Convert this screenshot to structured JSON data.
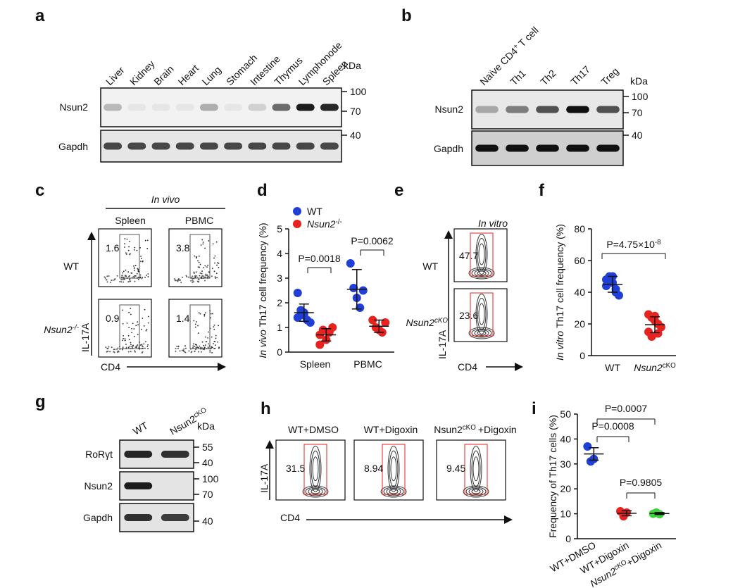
{
  "panels": {
    "a": {
      "label": "a",
      "lanes": [
        "Liver",
        "Kidney",
        "Brain",
        "Heart",
        "Lung",
        "Stomach",
        "Intestine",
        "Thymus",
        "Lymphonode",
        "Spleen"
      ],
      "rows": [
        "Nsun2",
        "Gapdh"
      ],
      "kda": "kDa",
      "markers": [
        100,
        70,
        40
      ]
    },
    "b": {
      "label": "b",
      "lanes": [
        {
          "text": "Naïve CD4",
          "sup": "+",
          "after": "T cell"
        },
        "Th1",
        "Th2",
        "Th17",
        "Treg"
      ],
      "rows": [
        "Nsun2",
        "Gapdh"
      ],
      "kda": "kDa",
      "markers": [
        100,
        70,
        40
      ]
    },
    "c": {
      "label": "c",
      "title": "In vivo",
      "columns": [
        "Spleen",
        "PBMC"
      ],
      "rows": [
        "WT",
        {
          "text": "Nsun2",
          "sup": "-/-"
        }
      ],
      "gates": [
        [
          1.6,
          3.8
        ],
        [
          0.9,
          1.4
        ]
      ],
      "yaxis": "IL-17A",
      "xaxis": "CD4"
    },
    "e": {
      "label": "e",
      "title": "In vitro",
      "rows": [
        "WT",
        {
          "text": "Nsun2",
          "sup": "cKO"
        }
      ],
      "gates": [
        47.7,
        23.6
      ],
      "yaxis": "IL-17A",
      "xaxis": "CD4"
    },
    "g": {
      "label": "g",
      "lanes": [
        "WT",
        {
          "text": "Nsun2",
          "sup": "cKO"
        }
      ],
      "kda": "kDa",
      "rows": [
        {
          "name": "RoRγt",
          "markers": [
            55,
            40
          ]
        },
        {
          "name": "Nsun2",
          "markers": [
            100,
            70
          ]
        },
        {
          "name": "Gapdh",
          "markers": [
            40
          ]
        }
      ]
    },
    "h": {
      "label": "h",
      "plots": [
        {
          "title": "WT+DMSO",
          "gate": 31.5
        },
        {
          "title": "WT+Digoxin",
          "gate": 8.94
        },
        {
          "title": {
            "text": "Nsun2",
            "sup": "cKO",
            "after": "+Digoxin"
          },
          "gate": 9.45
        }
      ],
      "yaxis": "IL-17A",
      "xaxis": "CD4"
    }
  },
  "chart_data": [
    {
      "type": "dot",
      "label": "d",
      "ylabel": {
        "italic": "In vivo",
        "text": "Th17 cell frequency (%)"
      },
      "categories": [
        "Spleen",
        "PBMC"
      ],
      "ylim": [
        0,
        5
      ],
      "yticks": [
        0,
        1,
        2,
        3,
        4,
        5
      ],
      "series": [
        {
          "name": "WT",
          "color": "#1f3fd6",
          "values": [
            [
              1.4,
              1.5,
              1.6,
              1.3,
              1.2,
              2.4,
              1.7,
              1.5
            ],
            [
              3.6,
              2.6,
              2.2,
              1.8,
              2.5
            ]
          ],
          "mean": [
            1.6,
            2.55
          ],
          "error": [
            0.35,
            0.8
          ]
        },
        {
          "name": "Nsun2",
          "name_sup": "-/-",
          "color": "#e8231f",
          "values": [
            [
              0.7,
              0.9,
              0.5,
              0.8,
              1.0,
              0.3
            ],
            [
              1.3,
              1.0,
              0.9,
              0.8,
              1.2
            ]
          ],
          "mean": [
            0.7,
            1.05
          ],
          "error": [
            0.25,
            0.25
          ]
        }
      ],
      "annotations": [
        "P=0.0018",
        "P=0.0062"
      ]
    },
    {
      "type": "dot",
      "label": "f",
      "ylabel": {
        "italic": "In vitro",
        "text": "Th17 cell frequency (%)"
      },
      "ylim": [
        0,
        80
      ],
      "yticks": [
        0,
        20,
        40,
        60,
        80
      ],
      "series": [
        {
          "name": "WT",
          "color": "#1f3fd6",
          "values": [
            48,
            50,
            46,
            42,
            38,
            44,
            47,
            50,
            40
          ],
          "mean": 45,
          "error": 5
        },
        {
          "name": "Nsun2",
          "name_sup": "cKO",
          "color": "#e8231f",
          "values": [
            26,
            24,
            22,
            20,
            18,
            15,
            12,
            25,
            14
          ],
          "mean": 19.5,
          "error": 5
        }
      ],
      "annotations": [
        {
          "text": "P=4.75×10",
          "sup": "-8"
        }
      ]
    },
    {
      "type": "dot",
      "label": "i",
      "ylabel": "Frequency of Th17 cells (%)",
      "ylim": [
        0,
        50
      ],
      "yticks": [
        0,
        10,
        20,
        30,
        40,
        50
      ],
      "series": [
        {
          "name": "WT+DMSO",
          "color": "#1f3fd6",
          "values": [
            37,
            31,
            32
          ],
          "mean": 34,
          "error": 2.5
        },
        {
          "name": "WT+Digoxin",
          "color": "#e8231f",
          "values": [
            11,
            9,
            10.5
          ],
          "mean": 10.2,
          "error": 1
        },
        {
          "name": "Nsun2",
          "name_sup": "cKO",
          "name_after": "+Digoxin",
          "color": "#3bd43b",
          "values": [
            10,
            10.5,
            9.8
          ],
          "mean": 10.1,
          "error": 0.4
        }
      ],
      "annotations": [
        "P=0.0007",
        "P=0.0008",
        "P=0.9805"
      ]
    }
  ]
}
